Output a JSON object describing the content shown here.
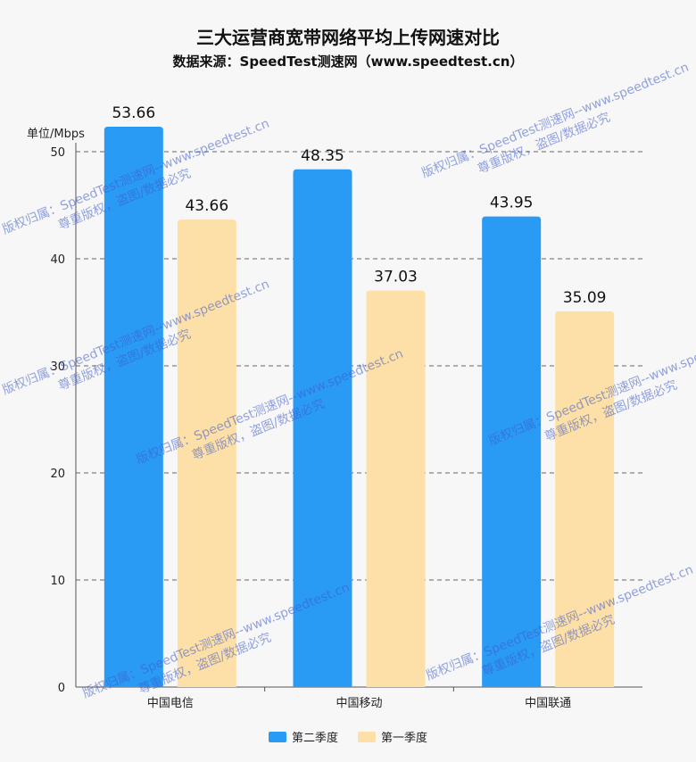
{
  "header": {
    "title": "三大运营商宽带网络平均上传网速对比",
    "subtitle": "数据来源：SpeedTest测速网（www.speedtest.cn）",
    "unit": "单位/Mbps"
  },
  "colors": {
    "series1": "#2a9bf5",
    "series2": "#fde0a8",
    "axis": "#555555",
    "grid": "#666666"
  },
  "watermark": {
    "line1": "版权归属：SpeedTest测速网--www.speedtest.cn",
    "line2": "尊重版权，盗图/数据必究"
  },
  "chart_data": {
    "type": "bar",
    "title": "三大运营商宽带网络平均上传网速对比",
    "subtitle": "数据来源：SpeedTest测速网（www.speedtest.cn）",
    "ylabel": "单位/Mbps",
    "categories": [
      "中国电信",
      "中国移动",
      "中国联通"
    ],
    "series": [
      {
        "name": "第二季度",
        "values": [
          53.66,
          48.35,
          43.95
        ]
      },
      {
        "name": "第一季度",
        "values": [
          43.66,
          37.03,
          35.09
        ]
      }
    ],
    "ylim": [
      0,
      50
    ],
    "yticks": [
      0,
      10,
      20,
      30,
      40,
      50
    ],
    "grid": true,
    "legend": "bottom"
  }
}
